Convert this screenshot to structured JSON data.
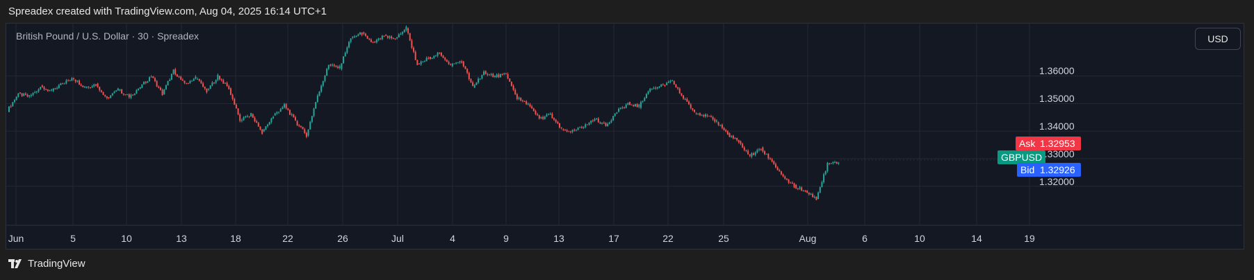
{
  "header": {
    "text": "Spreadex created with TradingView.com, Aug 04, 2025 16:14 UTC+1"
  },
  "symbol_title": "British Pound / U.S. Dollar · 30 · Spreadex",
  "currency_button": "USD",
  "footer": {
    "logo_text": "TradingView",
    "logo_icon": "tradingview-logo-icon"
  },
  "price_tags": {
    "ask_label": "Ask",
    "ask_value": "1.32953",
    "symbol": "GBPUSD",
    "bid_label": "Bid",
    "bid_value": "1.32926"
  },
  "colors": {
    "up": "#26a69a",
    "down": "#ef5350",
    "ask": "#f23645",
    "bid": "#2962ff",
    "symbol": "#089981"
  },
  "chart_data": {
    "type": "line",
    "title": "British Pound / U.S. Dollar · 30 · Spreadex",
    "xlabel": "",
    "ylabel": "",
    "ylim": [
      1.3146,
      1.3791
    ],
    "y_ticks": [
      "1.36000",
      "1.35000",
      "1.34000",
      "1.33000",
      "1.32000"
    ],
    "x_ticks": [
      "Jun",
      "5",
      "10",
      "13",
      "18",
      "22",
      "26",
      "Jul",
      "4",
      "9",
      "13",
      "17",
      "22",
      "25",
      "Aug",
      "6",
      "10",
      "14",
      "19"
    ],
    "grid": true,
    "series": [
      {
        "values": [
          1.3475,
          1.3535,
          1.3525,
          1.356,
          1.3545,
          1.3575,
          1.359,
          1.356,
          1.357,
          1.352,
          1.355,
          1.3525,
          1.356,
          1.36,
          1.3535,
          1.362,
          1.357,
          1.3595,
          1.3545,
          1.36,
          1.3555,
          1.344,
          1.346,
          1.3395,
          1.3455,
          1.3495,
          1.3435,
          1.3385,
          1.353,
          1.364,
          1.363,
          1.374,
          1.3755,
          1.372,
          1.3745,
          1.3735,
          1.3775,
          1.364,
          1.3665,
          1.3685,
          1.364,
          1.3655,
          1.356,
          1.3615,
          1.36,
          1.3605,
          1.352,
          1.3495,
          1.3445,
          1.346,
          1.3405,
          1.34,
          1.3415,
          1.3445,
          1.342,
          1.347,
          1.35,
          1.349,
          1.3555,
          1.3565,
          1.358,
          1.352,
          1.347,
          1.3455,
          1.3435,
          1.339,
          1.336,
          1.331,
          1.3335,
          1.329,
          1.323,
          1.32,
          1.318,
          1.3155,
          1.328,
          1.3285
        ]
      }
    ],
    "last_price": {
      "ask": 1.32953,
      "bid": 1.32926
    }
  }
}
